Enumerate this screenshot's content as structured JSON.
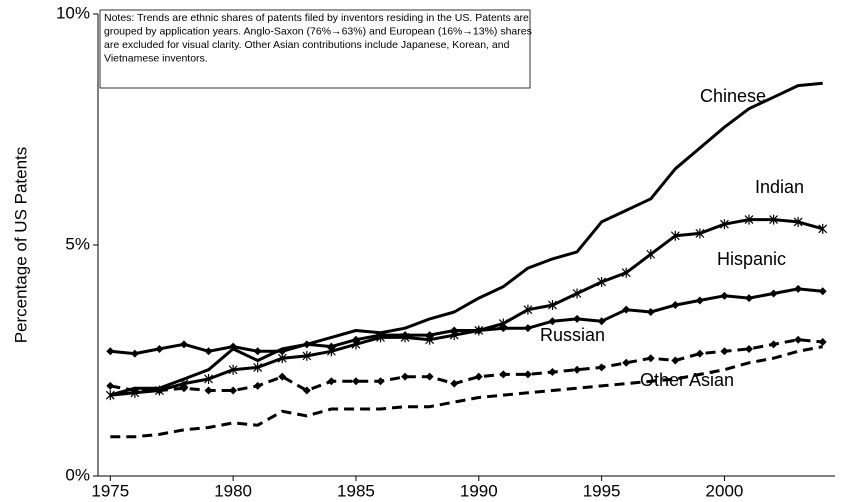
{
  "chart_data": {
    "type": "line",
    "ylabel": "Percentage of US Patents",
    "notes": [
      "Notes:  Trends are ethnic shares of patents filed by inventors residing in the US.  Patents are",
      "grouped by application years.  Anglo-Saxon (76%→63%) and European (16%→13%) shares",
      "are excluded for visual clarity.  Other Asian contributions include Japanese, Korean, and",
      "Vietnamese inventors."
    ],
    "x": [
      1975,
      1976,
      1977,
      1978,
      1979,
      1980,
      1981,
      1982,
      1983,
      1984,
      1985,
      1986,
      1987,
      1988,
      1989,
      1990,
      1991,
      1992,
      1993,
      1994,
      1995,
      1996,
      1997,
      1998,
      1999,
      2000,
      2001,
      2002,
      2003,
      2004
    ],
    "xlim": [
      1974.5,
      2004.5
    ],
    "xticks": [
      1975,
      1980,
      1985,
      1990,
      1995,
      2000
    ],
    "ylim": [
      0,
      10
    ],
    "yticks": [
      {
        "value": 0,
        "label": "0%"
      },
      {
        "value": 5,
        "label": "5%"
      },
      {
        "value": 10,
        "label": "10%"
      }
    ],
    "grid": false,
    "series": [
      {
        "name": "Chinese",
        "color": "#000000",
        "dash": false,
        "marker": "none",
        "values": [
          1.75,
          1.9,
          1.9,
          2.1,
          2.3,
          2.75,
          2.5,
          2.75,
          2.85,
          3.0,
          3.15,
          3.1,
          3.2,
          3.4,
          3.55,
          3.85,
          4.1,
          4.5,
          4.7,
          4.85,
          5.5,
          5.75,
          6.0,
          6.65,
          7.1,
          7.55,
          7.95,
          8.2,
          8.45,
          8.5
        ]
      },
      {
        "name": "Indian",
        "color": "#000000",
        "dash": false,
        "marker": "star",
        "values": [
          1.75,
          1.8,
          1.85,
          2.0,
          2.1,
          2.3,
          2.35,
          2.55,
          2.6,
          2.7,
          2.85,
          3.0,
          3.0,
          2.95,
          3.05,
          3.15,
          3.3,
          3.6,
          3.7,
          3.95,
          4.2,
          4.4,
          4.8,
          5.2,
          5.25,
          5.45,
          5.55,
          5.55,
          5.5,
          5.35
        ]
      },
      {
        "name": "Hispanic",
        "color": "#000000",
        "dash": false,
        "marker": "diamond",
        "values": [
          2.7,
          2.65,
          2.75,
          2.85,
          2.7,
          2.8,
          2.7,
          2.7,
          2.85,
          2.8,
          2.95,
          3.05,
          3.05,
          3.05,
          3.15,
          3.15,
          3.2,
          3.2,
          3.35,
          3.4,
          3.35,
          3.6,
          3.55,
          3.7,
          3.8,
          3.9,
          3.85,
          3.95,
          4.05,
          4.0
        ]
      },
      {
        "name": "Russian",
        "color": "#000000",
        "dash": true,
        "marker": "diamond",
        "values": [
          1.95,
          1.85,
          1.85,
          1.9,
          1.85,
          1.85,
          1.95,
          2.15,
          1.85,
          2.05,
          2.05,
          2.05,
          2.15,
          2.15,
          2.0,
          2.15,
          2.2,
          2.2,
          2.25,
          2.3,
          2.35,
          2.45,
          2.55,
          2.5,
          2.65,
          2.7,
          2.75,
          2.85,
          2.95,
          2.9
        ]
      },
      {
        "name": "Other Asian",
        "color": "#000000",
        "dash": true,
        "marker": "none",
        "values": [
          0.85,
          0.85,
          0.9,
          1.0,
          1.05,
          1.15,
          1.1,
          1.4,
          1.3,
          1.45,
          1.45,
          1.45,
          1.5,
          1.5,
          1.6,
          1.7,
          1.75,
          1.8,
          1.85,
          1.9,
          1.95,
          2.0,
          2.05,
          2.1,
          2.2,
          2.3,
          2.45,
          2.55,
          2.7,
          2.8
        ]
      }
    ]
  }
}
